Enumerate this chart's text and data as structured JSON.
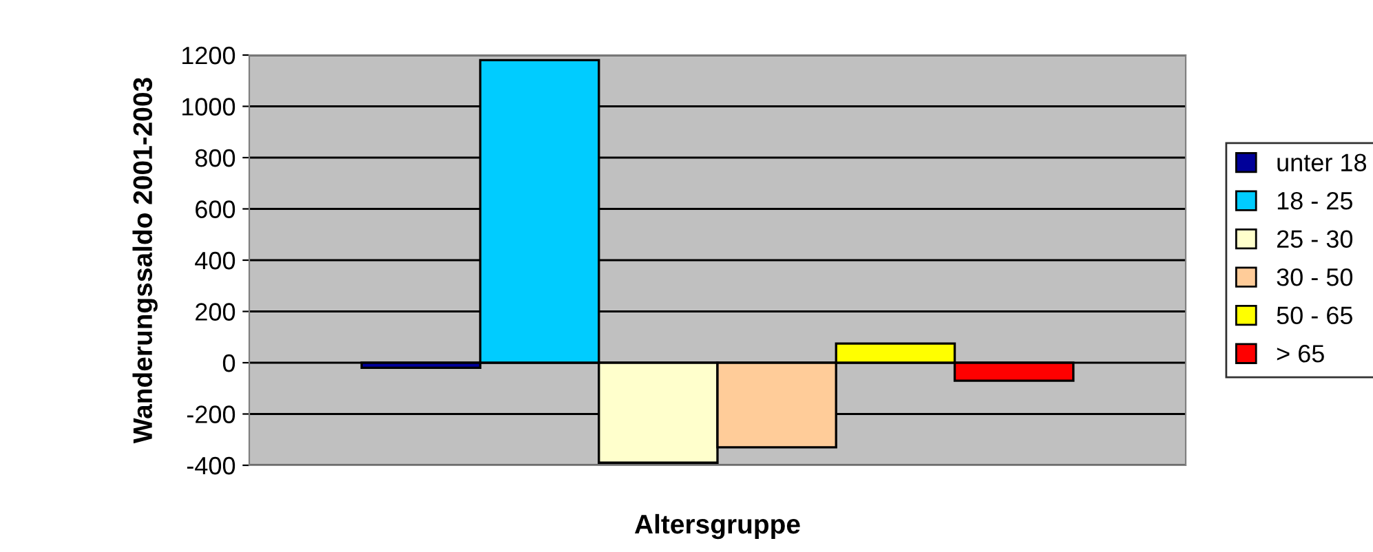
{
  "chart_data": {
    "type": "bar",
    "xlabel": "Altersgruppe",
    "ylabel": "Wanderungssaldo 2001-2003",
    "categories": [
      null
    ],
    "series": [
      {
        "name": "unter 18",
        "color": "#000099",
        "values": [
          -20
        ]
      },
      {
        "name": "18 - 25",
        "color": "#00ccff",
        "values": [
          1180
        ]
      },
      {
        "name": "25 - 30",
        "color": "#ffffcc",
        "values": [
          -390
        ]
      },
      {
        "name": "30 - 50",
        "color": "#ffcc99",
        "values": [
          -330
        ]
      },
      {
        "name": "50 - 65",
        "color": "#ffff00",
        "values": [
          75
        ]
      },
      {
        "name": "> 65",
        "color": "#ff0000",
        "values": [
          -70
        ]
      }
    ],
    "ylim": [
      -400,
      1200
    ],
    "yticks": [
      -400,
      -200,
      0,
      200,
      400,
      600,
      800,
      1000,
      1200
    ],
    "grid": "y",
    "legend": "right"
  }
}
